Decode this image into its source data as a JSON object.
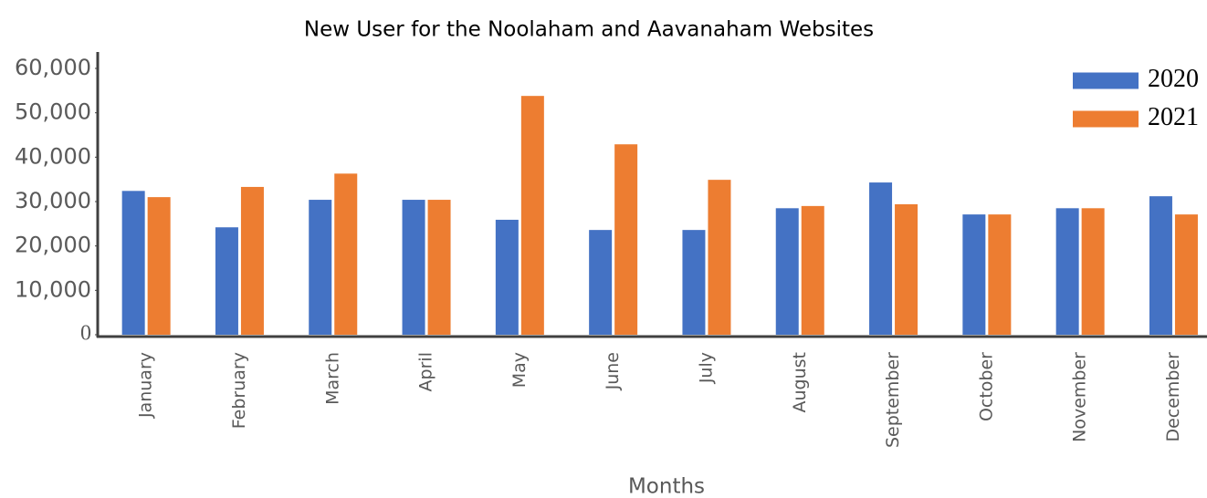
{
  "chart_data": {
    "type": "bar",
    "title": "New User for the Noolaham and Aavanaham Websites",
    "x_label": "Months",
    "categories": [
      "January",
      "February",
      "March",
      "April",
      "May",
      "June",
      "July",
      "August",
      "September",
      "October",
      "November",
      "December"
    ],
    "series": [
      {
        "name": "2020",
        "color": "#4472c4",
        "values": [
          32400,
          24200,
          30400,
          30400,
          25900,
          23600,
          23600,
          28500,
          34300,
          27100,
          28500,
          31200
        ]
      },
      {
        "name": "2021",
        "color": "#ed7d31",
        "values": [
          31000,
          33300,
          36300,
          30400,
          53800,
          42900,
          34900,
          29000,
          29400,
          27100,
          28500,
          27100
        ]
      }
    ],
    "ylim": [
      0,
      60000
    ],
    "yticks": [
      0,
      {
        "value": 10000,
        "label": "10,000"
      },
      {
        "value": 20000,
        "label": "20,000"
      },
      {
        "value": 30000,
        "label": "30,000"
      },
      {
        "value": 40000,
        "label": "40,000"
      },
      {
        "value": 50000,
        "label": "50,000"
      },
      {
        "value": 60000,
        "label": "60,000"
      }
    ],
    "grid": false,
    "legend": "top-right"
  }
}
